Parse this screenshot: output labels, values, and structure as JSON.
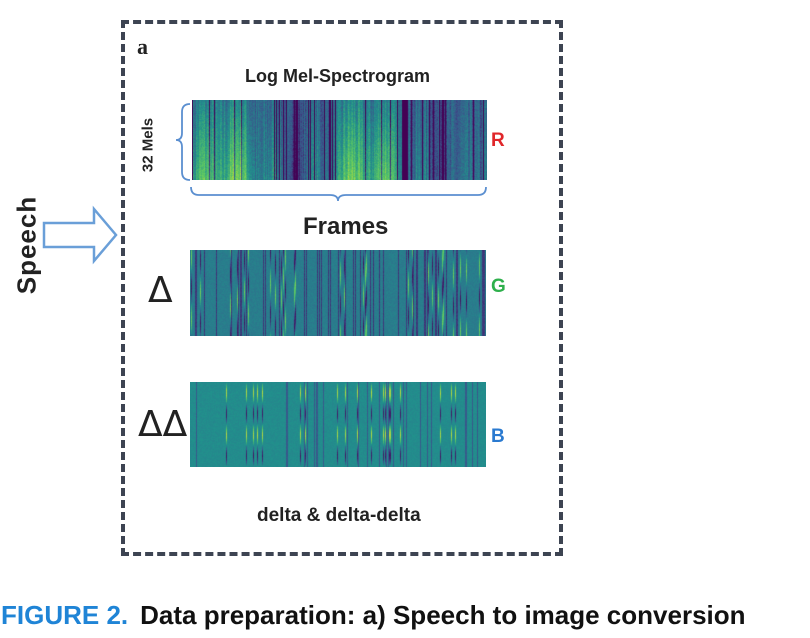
{
  "panel": {
    "letter": "a",
    "input_label": "Speech",
    "spectrogram_title": "Log Mel-Spectrogram",
    "mels_label": "32 Mels",
    "frames_label": "Frames",
    "delta_symbol": "Δ",
    "delta_delta_symbol": "ΔΔ",
    "bottom_label": "delta & delta-delta",
    "channels": {
      "r": {
        "label": "R",
        "color": "#e0262a"
      },
      "g": {
        "label": "G",
        "color": "#2eb04c"
      },
      "b": {
        "label": "B",
        "color": "#2a7ad0"
      }
    },
    "colormap": "viridis"
  },
  "caption": {
    "number": "FIGURE 2.",
    "number_color": "#1f84d6",
    "text": "Data preparation: a) Speech to image conversion"
  }
}
